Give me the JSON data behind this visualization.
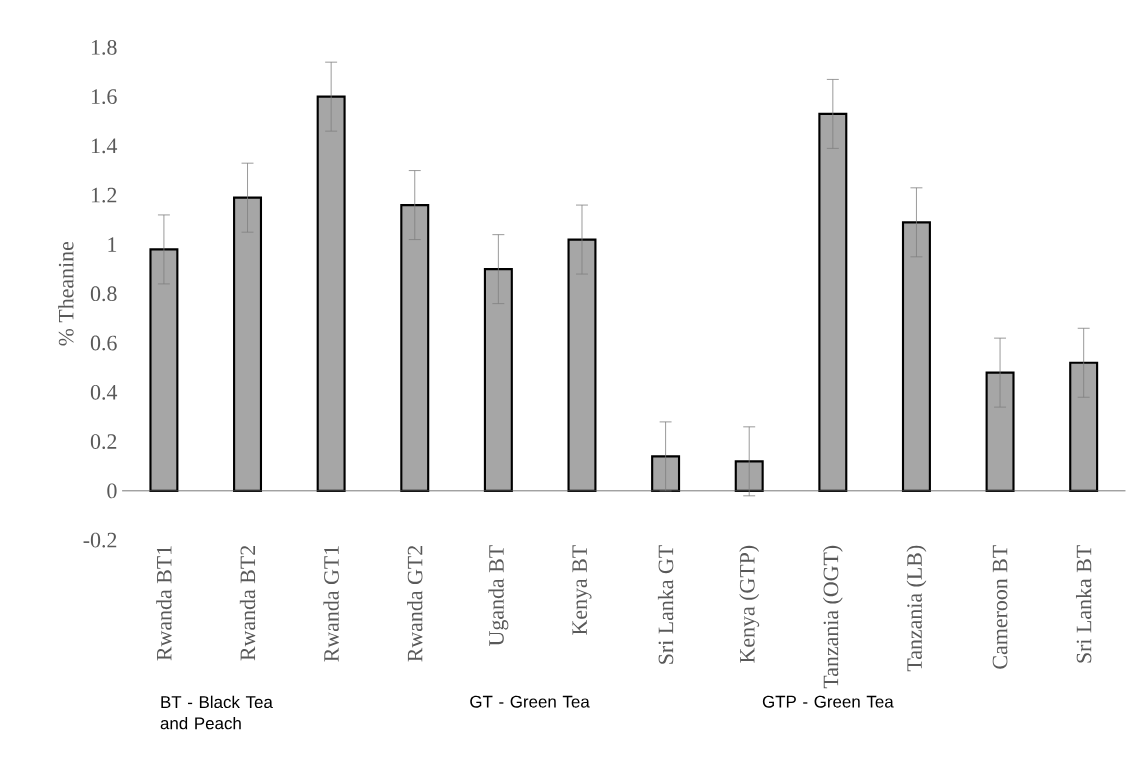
{
  "chart_data": {
    "type": "bar",
    "ylabel": "% Theanine",
    "categories": [
      "Rwanda BT1",
      "Rwanda BT2",
      "Rwanda GT1",
      "Rwanda GT2",
      "Uganda BT",
      "Kenya BT",
      "Sri Lanka GT",
      "Kenya (GTP)",
      "Tanzania (OGT)",
      "Tanzania (LB)",
      "Cameroon BT",
      "Sri Lanka BT"
    ],
    "values": [
      0.98,
      1.19,
      1.6,
      1.16,
      0.9,
      1.02,
      0.14,
      0.12,
      1.53,
      1.09,
      0.48,
      0.52
    ],
    "errors": [
      0.14,
      0.14,
      0.14,
      0.14,
      0.14,
      0.14,
      0.14,
      0.14,
      0.14,
      0.14,
      0.14,
      0.14
    ],
    "color": "#a6a6a6",
    "ylim": [
      -0.2,
      1.8
    ],
    "yticks": [
      -0.2,
      0,
      0.2,
      0.4,
      0.6,
      0.8,
      1,
      1.2,
      1.4,
      1.6,
      1.8
    ],
    "grid": false,
    "annotations": [
      "BT - Black Tea and Peach",
      "GT - Green Tea",
      "GTP - Green Tea"
    ]
  }
}
